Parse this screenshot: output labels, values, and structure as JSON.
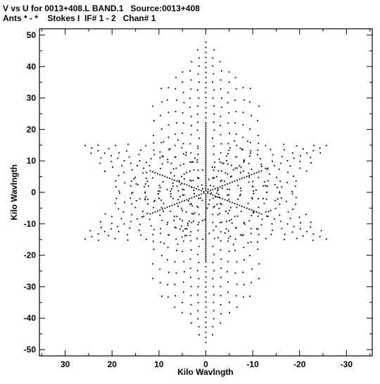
{
  "header": {
    "line1": "V vs U for 0013+408.L BAND.1   Source:0013+408",
    "line2": "Ants * - *    Stokes I  IF# 1 - 2   Chan# 1"
  },
  "chart_data": {
    "type": "scatter",
    "title": "V vs U for 0013+408.L BAND.1   Source:0013+408",
    "subtitle": "Ants * - *    Stokes I  IF# 1 - 2   Chan# 1",
    "xlabel": "Kilo Wavlngth",
    "ylabel": "Kilo Wavlngth",
    "xlim": [
      35.5,
      -35.5
    ],
    "ylim": [
      -52,
      52
    ],
    "x_reversed": true,
    "xticks": [
      30,
      20,
      10,
      0,
      -10,
      -20,
      -30
    ],
    "yticks": [
      50,
      40,
      30,
      20,
      10,
      0,
      -10,
      -20,
      -30,
      -40,
      -50
    ],
    "xtick_labels": [
      "30",
      "20",
      "10",
      "0",
      "-10",
      "-20",
      "-30"
    ],
    "ytick_labels": [
      "50",
      "40",
      "30",
      "20",
      "10",
      "0",
      "-10",
      "-20",
      "-30",
      "-40",
      "-50"
    ],
    "grid": false,
    "marker_color": "#000000",
    "description_of_pattern": "six-armed star uv-coverage; dense tracks along arms at 0, 60, 120, 180, 240, 300 degrees; points symmetric under (u,v)->(-u,-v)",
    "arms": [
      {
        "angle_deg": 90,
        "max_radius": 48
      },
      {
        "angle_deg": 30,
        "max_radius": 30
      },
      {
        "angle_deg": 150,
        "max_radius": 30
      },
      {
        "angle_deg": 210,
        "max_radius": 30
      },
      {
        "angle_deg": 270,
        "max_radius": 48
      },
      {
        "angle_deg": 330,
        "max_radius": 30
      }
    ]
  }
}
